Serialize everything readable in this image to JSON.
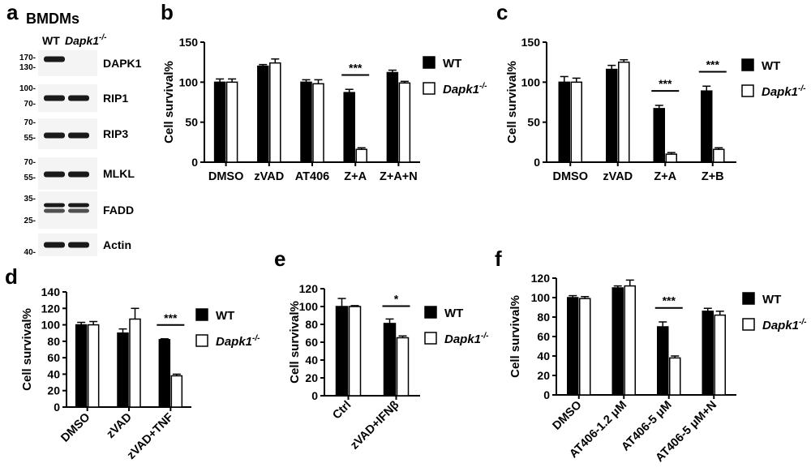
{
  "panel_a": {
    "label": "a",
    "title": "BMDMs",
    "lanes": [
      "WT",
      "Dapk1",
      "-/-"
    ],
    "blots": [
      {
        "name": "DAPK1",
        "markers": [
          "170-",
          "130-"
        ],
        "bands": [
          1.0,
          0.0
        ]
      },
      {
        "name": "RIP1",
        "markers": [
          "100-",
          "70-"
        ],
        "bands": [
          1.0,
          1.0
        ]
      },
      {
        "name": "RIP3",
        "markers": [
          "70-",
          "55-"
        ],
        "bands": [
          1.0,
          1.0
        ]
      },
      {
        "name": "MLKL",
        "markers": [
          "70-",
          "55-"
        ],
        "bands": [
          1.0,
          1.0
        ]
      },
      {
        "name": "FADD",
        "markers": [
          "35-",
          "25-"
        ],
        "bands": [
          1.0,
          1.0
        ]
      },
      {
        "name": "Actin",
        "markers": [
          "40-"
        ],
        "bands": [
          1.0,
          1.0
        ]
      }
    ]
  },
  "legend": {
    "wt": "WT",
    "ko": "Dapk1",
    "ko_sup": "-/-"
  },
  "colors": {
    "wt": "#000000",
    "ko": "#ffffff"
  },
  "chart_data": [
    {
      "panel": "b",
      "type": "bar",
      "ylabel": "Cell survival%",
      "ylim": [
        0,
        150
      ],
      "yticks": [
        "0",
        "50",
        "100",
        "150"
      ],
      "categories": [
        "DMSO",
        "zVAD",
        "AT406",
        "Z+A",
        "Z+A+N"
      ],
      "series": [
        {
          "name": "WT",
          "values": [
            100,
            120,
            100,
            87,
            112
          ],
          "errors": [
            4,
            2,
            3,
            4,
            3
          ]
        },
        {
          "name": "Dapk1-/-",
          "values": [
            100,
            124,
            98,
            16,
            99
          ],
          "errors": [
            4,
            5,
            5,
            2,
            2
          ]
        }
      ],
      "significance": [
        {
          "category": "Z+A",
          "label": "***"
        }
      ]
    },
    {
      "panel": "c",
      "type": "bar",
      "ylabel": "Cell survival%",
      "ylim": [
        0,
        150
      ],
      "yticks": [
        "0",
        "50",
        "100",
        "150"
      ],
      "categories": [
        "DMSO",
        "zVAD",
        "Z+A",
        "Z+B"
      ],
      "series": [
        {
          "name": "WT",
          "values": [
            100,
            116,
            67,
            89
          ],
          "errors": [
            7,
            5,
            4,
            6
          ]
        },
        {
          "name": "Dapk1-/-",
          "values": [
            100,
            125,
            10,
            16
          ],
          "errors": [
            5,
            3,
            2,
            2
          ]
        }
      ],
      "significance": [
        {
          "category": "Z+A",
          "label": "***"
        },
        {
          "category": "Z+B",
          "label": "***"
        }
      ]
    },
    {
      "panel": "d",
      "type": "bar",
      "ylabel": "Cell survival%",
      "ylim": [
        0,
        140
      ],
      "yticks": [
        "0",
        "20",
        "40",
        "60",
        "80",
        "100",
        "120",
        "140"
      ],
      "categories": [
        "DMSO",
        "zVAD",
        "zVAD+TNF"
      ],
      "series": [
        {
          "name": "WT",
          "values": [
            100,
            90,
            82
          ],
          "errors": [
            3,
            5,
            1
          ]
        },
        {
          "name": "Dapk1-/-",
          "values": [
            100,
            107,
            38
          ],
          "errors": [
            4,
            13,
            2
          ]
        }
      ],
      "significance": [
        {
          "category": "zVAD+TNF",
          "label": "***"
        }
      ]
    },
    {
      "panel": "e",
      "type": "bar",
      "ylabel": "Cell survival%",
      "ylim": [
        0,
        120
      ],
      "yticks": [
        "0",
        "20",
        "40",
        "60",
        "80",
        "100",
        "120"
      ],
      "categories": [
        "Ctrl",
        "zVAD+IFNβ"
      ],
      "series": [
        {
          "name": "WT",
          "values": [
            100,
            81
          ],
          "errors": [
            9,
            5
          ]
        },
        {
          "name": "Dapk1-/-",
          "values": [
            100,
            65
          ],
          "errors": [
            1,
            2
          ]
        }
      ],
      "significance": [
        {
          "category": "zVAD+IFNβ",
          "label": "*"
        }
      ]
    },
    {
      "panel": "f",
      "type": "bar",
      "ylabel": "Cell survival%",
      "ylim": [
        0,
        120
      ],
      "yticks": [
        "0",
        "20",
        "40",
        "60",
        "80",
        "100",
        "120"
      ],
      "categories": [
        "DMSO",
        "AT406-1.2 μM",
        "AT406-5 μM",
        "AT406-5 μM+N"
      ],
      "series": [
        {
          "name": "WT",
          "values": [
            100,
            110,
            70,
            86
          ],
          "errors": [
            2,
            2,
            5,
            3
          ]
        },
        {
          "name": "Dapk1-/-",
          "values": [
            99,
            112,
            38,
            82
          ],
          "errors": [
            2,
            6,
            2,
            4
          ]
        }
      ],
      "significance": [
        {
          "category": "AT406-5 μM",
          "label": "***"
        }
      ]
    }
  ]
}
